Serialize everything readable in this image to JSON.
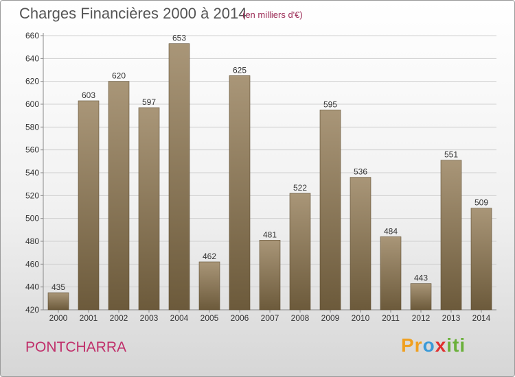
{
  "header": {
    "title": "Charges Financières 2000 à 2014",
    "subtitle": "(en milliers d'€)"
  },
  "footer": {
    "commune": "PONTCHARRA",
    "brand_parts": [
      "Pr",
      "o",
      "x",
      "iti"
    ]
  },
  "colors": {
    "bar_light": "#a99678",
    "bar_dark": "#6c5a3b",
    "grid": "#cfcfcf",
    "title": "#555555",
    "accent": "#c0306b"
  },
  "chart_data": {
    "type": "bar",
    "title": "Charges Financières 2000 à 2014",
    "subtitle": "(en milliers d'€)",
    "categories": [
      "2000",
      "2001",
      "2002",
      "2003",
      "2004",
      "2005",
      "2006",
      "2007",
      "2008",
      "2009",
      "2010",
      "2011",
      "2012",
      "2013",
      "2014"
    ],
    "values": [
      435,
      603,
      620,
      597,
      653,
      462,
      625,
      481,
      522,
      595,
      536,
      484,
      443,
      551,
      509
    ],
    "ylim": [
      420,
      660
    ],
    "yticks": [
      420,
      440,
      460,
      480,
      500,
      520,
      540,
      560,
      580,
      600,
      620,
      640,
      660
    ],
    "grid": true,
    "legend": "none"
  }
}
